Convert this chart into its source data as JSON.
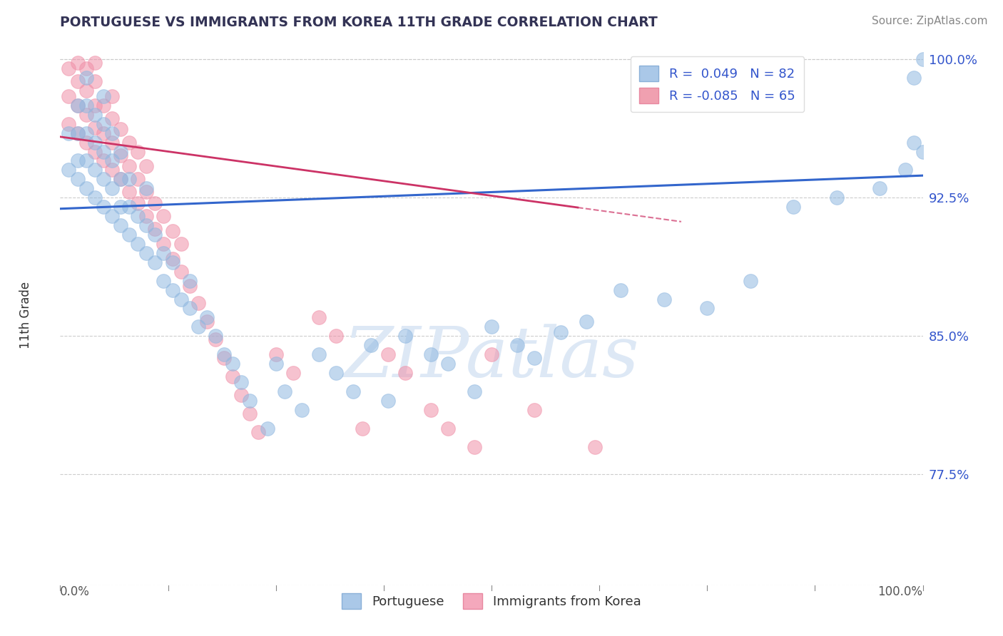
{
  "title": "PORTUGUESE VS IMMIGRANTS FROM KOREA 11TH GRADE CORRELATION CHART",
  "source_text": "Source: ZipAtlas.com",
  "ylabel": "11th Grade",
  "xlim": [
    0.0,
    1.0
  ],
  "ylim": [
    0.715,
    1.008
  ],
  "yticks": [
    0.775,
    0.85,
    0.925,
    1.0
  ],
  "ytick_labels": [
    "77.5%",
    "85.0%",
    "92.5%",
    "100.0%"
  ],
  "legend_entries": [
    {
      "label": "R =  0.049   N = 82",
      "color": "#aac8e8"
    },
    {
      "label": "R = -0.085   N = 65",
      "color": "#f0a0b0"
    }
  ],
  "blue_R": 0.049,
  "pink_R": -0.085,
  "blue_color": "#90b8e0",
  "pink_color": "#f090a8",
  "trend_blue_color": "#3366cc",
  "trend_pink_color": "#cc3366",
  "watermark_color": "#dde8f5",
  "blue_x": [
    0.01,
    0.01,
    0.02,
    0.02,
    0.02,
    0.02,
    0.03,
    0.03,
    0.03,
    0.03,
    0.03,
    0.04,
    0.04,
    0.04,
    0.04,
    0.05,
    0.05,
    0.05,
    0.05,
    0.05,
    0.06,
    0.06,
    0.06,
    0.06,
    0.07,
    0.07,
    0.07,
    0.07,
    0.08,
    0.08,
    0.08,
    0.09,
    0.09,
    0.1,
    0.1,
    0.1,
    0.11,
    0.11,
    0.12,
    0.12,
    0.13,
    0.13,
    0.14,
    0.15,
    0.15,
    0.16,
    0.17,
    0.18,
    0.19,
    0.2,
    0.21,
    0.22,
    0.24,
    0.25,
    0.26,
    0.28,
    0.3,
    0.32,
    0.34,
    0.36,
    0.38,
    0.4,
    0.43,
    0.45,
    0.48,
    0.5,
    0.53,
    0.55,
    0.58,
    0.61,
    0.65,
    0.7,
    0.75,
    0.8,
    0.85,
    0.9,
    0.95,
    0.98,
    0.99,
    1.0,
    0.99,
    1.0
  ],
  "blue_y": [
    0.94,
    0.96,
    0.935,
    0.945,
    0.96,
    0.975,
    0.93,
    0.945,
    0.96,
    0.975,
    0.99,
    0.925,
    0.94,
    0.955,
    0.97,
    0.92,
    0.935,
    0.95,
    0.965,
    0.98,
    0.915,
    0.93,
    0.945,
    0.96,
    0.91,
    0.92,
    0.935,
    0.95,
    0.905,
    0.92,
    0.935,
    0.9,
    0.915,
    0.895,
    0.91,
    0.93,
    0.89,
    0.905,
    0.88,
    0.895,
    0.875,
    0.89,
    0.87,
    0.865,
    0.88,
    0.855,
    0.86,
    0.85,
    0.84,
    0.835,
    0.825,
    0.815,
    0.8,
    0.835,
    0.82,
    0.81,
    0.84,
    0.83,
    0.82,
    0.845,
    0.815,
    0.85,
    0.84,
    0.835,
    0.82,
    0.855,
    0.845,
    0.838,
    0.852,
    0.858,
    0.875,
    0.87,
    0.865,
    0.88,
    0.92,
    0.925,
    0.93,
    0.94,
    0.955,
    0.95,
    0.99,
    1.0
  ],
  "pink_x": [
    0.01,
    0.01,
    0.01,
    0.02,
    0.02,
    0.02,
    0.02,
    0.03,
    0.03,
    0.03,
    0.03,
    0.04,
    0.04,
    0.04,
    0.04,
    0.04,
    0.05,
    0.05,
    0.05,
    0.06,
    0.06,
    0.06,
    0.06,
    0.07,
    0.07,
    0.07,
    0.08,
    0.08,
    0.08,
    0.09,
    0.09,
    0.09,
    0.1,
    0.1,
    0.1,
    0.11,
    0.11,
    0.12,
    0.12,
    0.13,
    0.13,
    0.14,
    0.14,
    0.15,
    0.16,
    0.17,
    0.18,
    0.19,
    0.2,
    0.21,
    0.22,
    0.23,
    0.25,
    0.27,
    0.3,
    0.32,
    0.35,
    0.38,
    0.4,
    0.43,
    0.45,
    0.48,
    0.5,
    0.55,
    0.62
  ],
  "pink_y": [
    0.965,
    0.98,
    0.995,
    0.96,
    0.975,
    0.988,
    0.998,
    0.955,
    0.97,
    0.983,
    0.995,
    0.95,
    0.963,
    0.975,
    0.988,
    0.998,
    0.945,
    0.96,
    0.975,
    0.94,
    0.955,
    0.968,
    0.98,
    0.935,
    0.948,
    0.962,
    0.928,
    0.942,
    0.955,
    0.922,
    0.935,
    0.95,
    0.915,
    0.928,
    0.942,
    0.908,
    0.922,
    0.9,
    0.915,
    0.892,
    0.907,
    0.885,
    0.9,
    0.877,
    0.868,
    0.858,
    0.848,
    0.838,
    0.828,
    0.818,
    0.808,
    0.798,
    0.84,
    0.83,
    0.86,
    0.85,
    0.8,
    0.84,
    0.83,
    0.81,
    0.8,
    0.79,
    0.84,
    0.81,
    0.79
  ],
  "blue_trend_x0": 0.0,
  "blue_trend_x1": 1.0,
  "blue_trend_y0": 0.919,
  "blue_trend_y1": 0.937,
  "pink_trend_x0": 0.0,
  "pink_trend_x1": 0.72,
  "pink_trend_solid_x1": 0.6,
  "pink_trend_y0": 0.958,
  "pink_trend_y1": 0.912
}
